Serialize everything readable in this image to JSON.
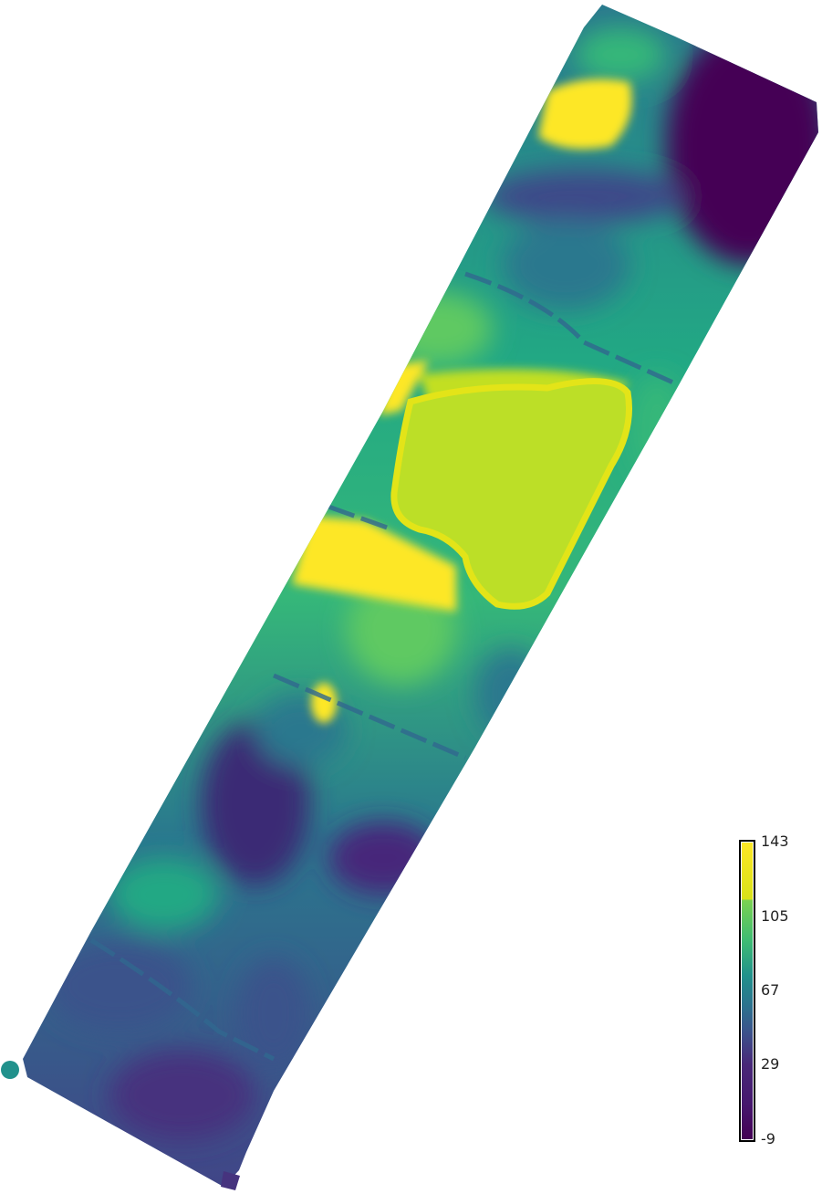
{
  "colormap": "viridis",
  "colors": {
    "max": "#fde725",
    "high": "#7ad151",
    "mid": "#21918c",
    "low": "#3b528b",
    "min": "#440154",
    "lake": "#bcdf27"
  },
  "colorbar": {
    "min": -9,
    "max": 143,
    "ticks": [
      "143",
      "105",
      "67",
      "29",
      "-9"
    ]
  }
}
